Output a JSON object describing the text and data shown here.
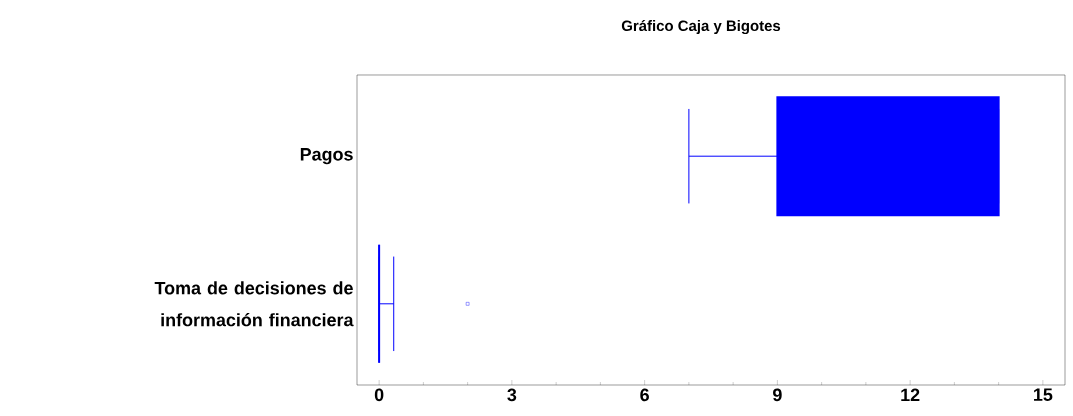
{
  "chart_data": {
    "type": "box",
    "title": "Gráfico Caja y Bigotes",
    "orientation": "horizontal",
    "categories": [
      "Pagos",
      "Toma de decisiones de información financiera"
    ],
    "color": "#0000ff",
    "boxes": [
      {
        "low": 7,
        "q1": 9,
        "median": 11,
        "q3": 14,
        "high": 14
      },
      {
        "low": 0,
        "q1": 0,
        "median": 0,
        "q3": 0,
        "high": 0.33,
        "outliers": [
          2
        ]
      }
    ],
    "xlim": [
      -0.5,
      15.5
    ],
    "xticks": [
      0,
      3,
      6,
      9,
      12,
      15
    ],
    "grid": false
  }
}
